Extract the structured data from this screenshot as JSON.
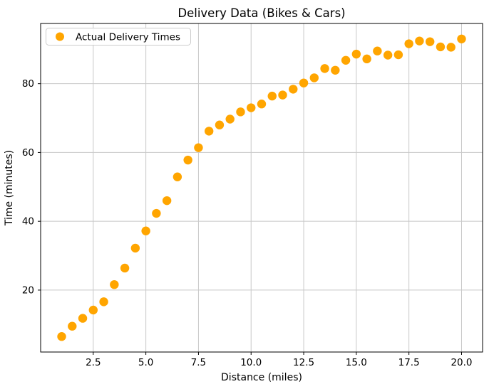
{
  "chart_data": {
    "type": "scatter",
    "title": "Delivery Data (Bikes & Cars)",
    "xlabel": "Distance (miles)",
    "ylabel": "Time (minutes)",
    "xlim": [
      0,
      21
    ],
    "ylim": [
      2,
      97.5
    ],
    "grid": true,
    "grid_color": "#c8c8c8",
    "background_color": "#ffffff",
    "xticks": [
      {
        "value": 2.5,
        "label": "2.5"
      },
      {
        "value": 5.0,
        "label": "5.0"
      },
      {
        "value": 7.5,
        "label": "7.5"
      },
      {
        "value": 10.0,
        "label": "10.0"
      },
      {
        "value": 12.5,
        "label": "12.5"
      },
      {
        "value": 15.0,
        "label": "15.0"
      },
      {
        "value": 17.5,
        "label": "17.5"
      },
      {
        "value": 20.0,
        "label": "20.0"
      }
    ],
    "yticks": [
      {
        "value": 20,
        "label": "20"
      },
      {
        "value": 40,
        "label": "40"
      },
      {
        "value": 60,
        "label": "60"
      },
      {
        "value": 80,
        "label": "80"
      }
    ],
    "legend": {
      "position": "upper left",
      "label": "Actual Delivery Times",
      "marker": "circle",
      "marker_color": "#FFA500"
    },
    "series": [
      {
        "name": "Actual Delivery Times",
        "marker": "circle",
        "color": "#FFA500",
        "x": [
          1.0,
          1.5,
          2.0,
          2.5,
          3.0,
          3.5,
          4.0,
          4.5,
          5.0,
          5.5,
          6.0,
          6.5,
          7.0,
          7.5,
          8.0,
          8.5,
          9.0,
          9.5,
          10.0,
          10.5,
          11.0,
          11.5,
          12.0,
          12.5,
          13.0,
          13.5,
          14.0,
          14.5,
          15.0,
          15.5,
          16.0,
          16.5,
          17.0,
          17.5,
          18.0,
          18.5,
          19.0,
          19.5,
          20.0
        ],
        "y": [
          6.5,
          9.5,
          11.8,
          14.2,
          16.6,
          21.6,
          26.4,
          32.2,
          37.2,
          42.3,
          46.0,
          52.9,
          57.8,
          61.4,
          66.2,
          68.0,
          69.7,
          71.8,
          73.0,
          74.1,
          76.4,
          76.7,
          78.4,
          80.2,
          81.7,
          84.4,
          83.9,
          86.8,
          88.6,
          87.2,
          89.5,
          88.3,
          88.4,
          91.6,
          92.4,
          92.2,
          90.7,
          90.6,
          93.0
        ]
      }
    ]
  }
}
